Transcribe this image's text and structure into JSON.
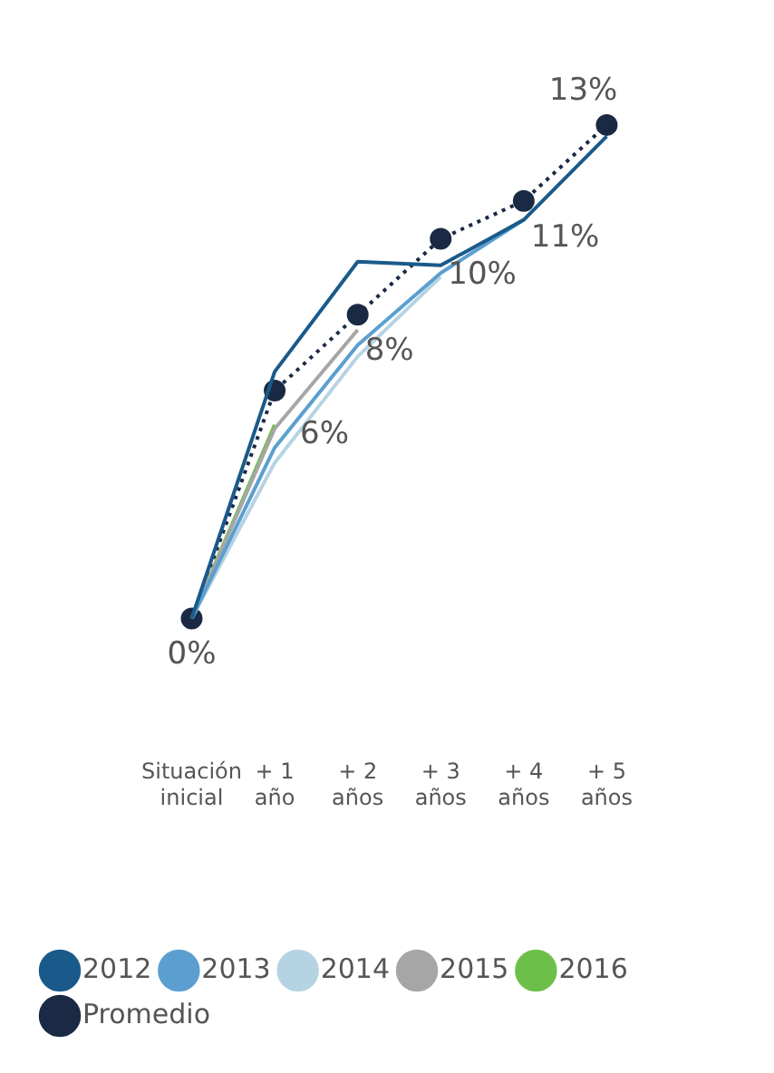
{
  "chart_data": {
    "type": "line",
    "categories": [
      "Situación inicial",
      "+ 1 año",
      "+ 2 años",
      "+ 3 años",
      "+ 4 años",
      "+ 5 años"
    ],
    "tick_labels": "x",
    "grid": false,
    "legend": "bottom",
    "marker": "none",
    "series": [
      {
        "name": "2012",
        "color": "#1a5a8a",
        "values": [
          0,
          6.5,
          9.4,
          9.3,
          10.5,
          12.7
        ]
      },
      {
        "name": "2013",
        "color": "#5b9fd0",
        "values": [
          0,
          4.5,
          7.2,
          9.1,
          10.5,
          null
        ]
      },
      {
        "name": "2014",
        "color": "#b5d3e3",
        "values": [
          0,
          4.1,
          6.9,
          9.0,
          null,
          null
        ]
      },
      {
        "name": "2015",
        "color": "#a6a6a6",
        "values": [
          0,
          5.0,
          7.6,
          null,
          null,
          null
        ]
      },
      {
        "name": "2016",
        "color": "#6cc04a",
        "values": [
          0,
          5.1,
          null,
          null,
          null,
          null
        ]
      },
      {
        "name": "Promedio",
        "color": "#1a2a44",
        "marker": "circle",
        "line_style": "dotted",
        "values": [
          0,
          6,
          8,
          10,
          11,
          13
        ],
        "value_labels": [
          "0%",
          "6%",
          "8%",
          "10%",
          "11%",
          "13%"
        ]
      }
    ]
  }
}
